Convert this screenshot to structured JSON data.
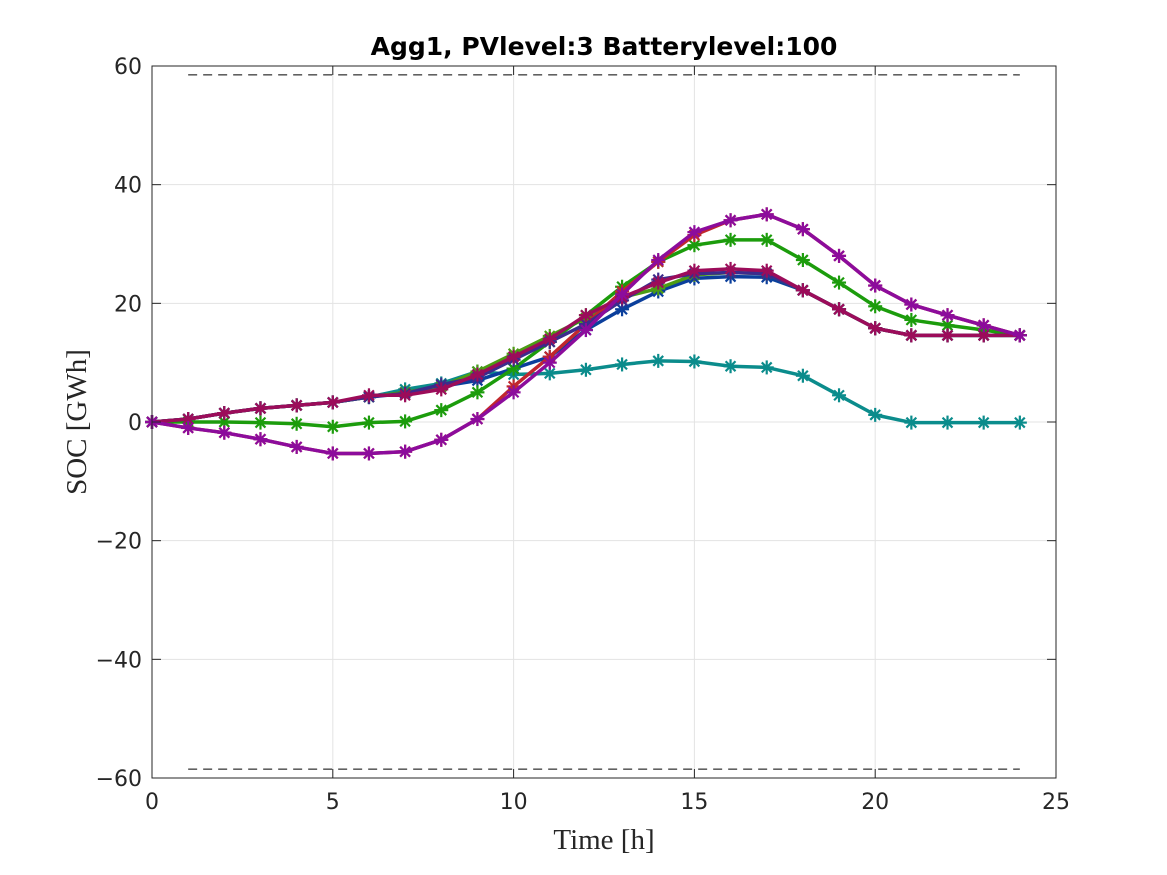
{
  "chart_data": {
    "type": "line",
    "title": "Agg1, PVlevel:3 Batterylevel:100",
    "xlabel": "Time [h]",
    "ylabel": "SOC [GWh]",
    "xlim": [
      0,
      25
    ],
    "ylim": [
      -60,
      60
    ],
    "xticks": [
      0,
      5,
      10,
      15,
      20,
      25
    ],
    "yticks": [
      -60,
      -40,
      -20,
      0,
      20,
      40,
      60
    ],
    "xtick_labels": [
      "0",
      "5",
      "10",
      "15",
      "20",
      "25"
    ],
    "ytick_labels": [
      "−60",
      "−40",
      "−20",
      "0",
      "20",
      "40",
      "60"
    ],
    "grid": true,
    "marker": "asterisk",
    "x": [
      0,
      1,
      2,
      3,
      4,
      5,
      6,
      7,
      8,
      9,
      10,
      11,
      12,
      13,
      14,
      15,
      16,
      17,
      18,
      19,
      20,
      21,
      22,
      23,
      24
    ],
    "reference_lines": [
      {
        "y": 58.5,
        "x_range": [
          1,
          24
        ],
        "style": "dashed",
        "color": "#000000"
      },
      {
        "y": -58.5,
        "x_range": [
          1,
          24
        ],
        "style": "dashed",
        "color": "#000000"
      }
    ],
    "series": [
      {
        "color": "#0b8c8c",
        "values": [
          0,
          0.5,
          1.5,
          2.3,
          2.8,
          3.3,
          4.2,
          5.5,
          6.5,
          8.5,
          8.0,
          8.2,
          8.8,
          9.7,
          10.3,
          10.2,
          9.4,
          9.2,
          7.8,
          4.5,
          1.2,
          -0.1,
          -0.1,
          -0.1,
          -0.1
        ]
      },
      {
        "color": "#0b3f9c",
        "values": [
          0,
          0.5,
          1.5,
          2.3,
          2.8,
          3.3,
          4.2,
          5.0,
          6.0,
          7.0,
          9.0,
          11.0,
          15.5,
          19.0,
          22.0,
          24.2,
          24.5,
          24.4,
          22.2,
          19.0,
          15.8,
          14.6,
          14.6,
          14.6,
          14.6
        ]
      },
      {
        "color": "#4c9c14",
        "values": [
          0,
          0.5,
          1.5,
          2.3,
          2.8,
          3.3,
          4.2,
          5.0,
          6.0,
          8.5,
          11.5,
          14.5,
          17.5,
          21.0,
          22.5,
          24.8,
          25.2,
          25.0,
          22.2,
          19.0,
          15.8,
          14.6,
          14.6,
          14.6,
          14.6
        ]
      },
      {
        "color": "#1c9c0c",
        "values": [
          0,
          0,
          0,
          -0.1,
          -0.3,
          -0.8,
          -0.1,
          0.1,
          2.0,
          5.0,
          9.0,
          13.5,
          18.0,
          22.8,
          27.0,
          29.8,
          30.7,
          30.7,
          27.3,
          23.5,
          19.5,
          17.2,
          16.3,
          15.5,
          14.6
        ]
      },
      {
        "color": "#c1272d",
        "values": [
          0,
          -1.0,
          -1.8,
          -2.9,
          -4.2,
          -5.3,
          -5.3,
          -5.0,
          -3.0,
          0.5,
          6.0,
          11.0,
          16.5,
          22.0,
          27.0,
          31.5,
          34.0,
          35.0,
          32.5,
          28.0,
          23.0,
          19.8,
          18.0,
          16.3,
          14.6
        ]
      },
      {
        "color": "#3c2b8c",
        "values": [
          0,
          0.5,
          1.5,
          2.3,
          2.8,
          3.3,
          4.2,
          4.8,
          6.3,
          7.5,
          10.5,
          13.5,
          16.5,
          20.5,
          24.0,
          25.0,
          25.2,
          25.0,
          22.2,
          19.0,
          15.8,
          14.6,
          14.6,
          14.6,
          14.6
        ]
      },
      {
        "color": "#9c0c5a",
        "values": [
          0,
          0.5,
          1.5,
          2.3,
          2.8,
          3.3,
          4.5,
          4.5,
          5.5,
          8.0,
          11.0,
          14.0,
          18.0,
          21.0,
          23.5,
          25.5,
          25.8,
          25.5,
          22.2,
          19.0,
          15.8,
          14.6,
          14.6,
          14.6,
          14.6
        ]
      },
      {
        "color": "#8c0c9c",
        "values": [
          0,
          -1.0,
          -1.8,
          -2.9,
          -4.2,
          -5.3,
          -5.3,
          -5.0,
          -3.0,
          0.5,
          5.0,
          10.0,
          15.5,
          21.5,
          27.3,
          32.0,
          34.0,
          35.0,
          32.5,
          28.0,
          23.0,
          19.8,
          18.0,
          16.3,
          14.6
        ]
      }
    ]
  }
}
